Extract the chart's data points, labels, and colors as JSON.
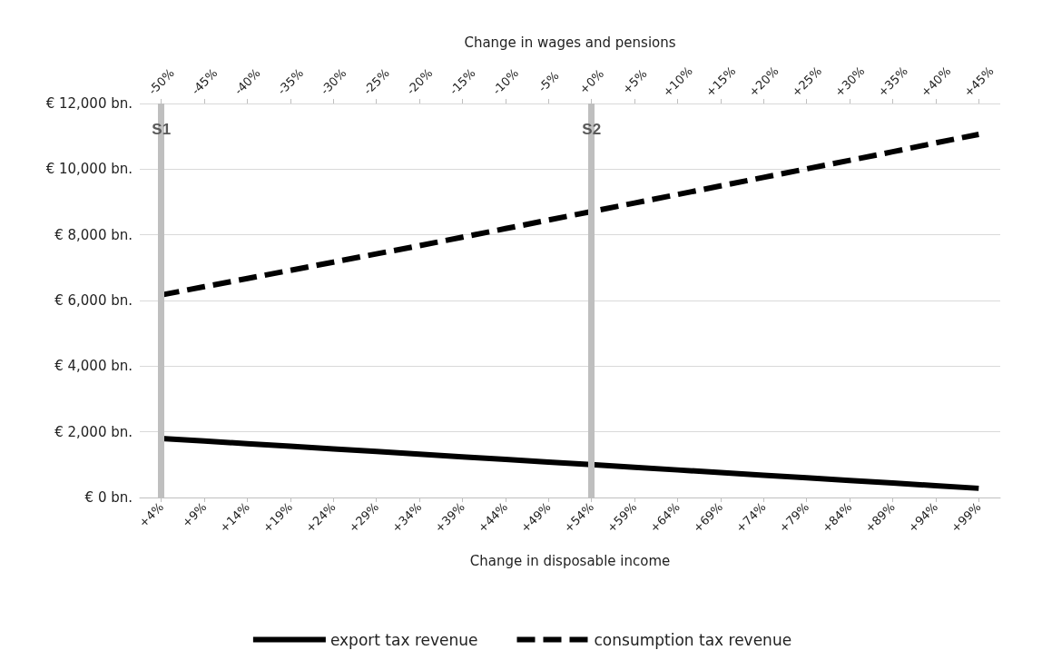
{
  "chart_data": {
    "type": "line",
    "xlabel": "Change in disposable income",
    "x2label": "Change in wages and pensions",
    "x": [
      4,
      9,
      14,
      19,
      24,
      29,
      34,
      39,
      44,
      49,
      54,
      59,
      64,
      69,
      74,
      79,
      84,
      89,
      94,
      99
    ],
    "xlim": [
      1.5,
      101.5
    ],
    "xticks": [
      {
        "value": 4,
        "label": "+4%"
      },
      {
        "value": 9,
        "label": "+9%"
      },
      {
        "value": 14,
        "label": "+14%"
      },
      {
        "value": 19,
        "label": "+19%"
      },
      {
        "value": 24,
        "label": "+24%"
      },
      {
        "value": 29,
        "label": "+29%"
      },
      {
        "value": 34,
        "label": "+34%"
      },
      {
        "value": 39,
        "label": "+39%"
      },
      {
        "value": 44,
        "label": "+44%"
      },
      {
        "value": 49,
        "label": "+49%"
      },
      {
        "value": 54,
        "label": "+54%"
      },
      {
        "value": 59,
        "label": "+59%"
      },
      {
        "value": 64,
        "label": "+64%"
      },
      {
        "value": 69,
        "label": "+69%"
      },
      {
        "value": 74,
        "label": "+74%"
      },
      {
        "value": 79,
        "label": "+79%"
      },
      {
        "value": 84,
        "label": "+84%"
      },
      {
        "value": 89,
        "label": "+89%"
      },
      {
        "value": 94,
        "label": "+94%"
      },
      {
        "value": 99,
        "label": "+99%"
      }
    ],
    "x2lim": [
      -52.5,
      47.5
    ],
    "x2ticks": [
      {
        "value": -50,
        "label": "-50%"
      },
      {
        "value": -45,
        "label": "-45%"
      },
      {
        "value": -40,
        "label": "-40%"
      },
      {
        "value": -35,
        "label": "-35%"
      },
      {
        "value": -30,
        "label": "-30%"
      },
      {
        "value": -25,
        "label": "-25%"
      },
      {
        "value": -20,
        "label": "-20%"
      },
      {
        "value": -15,
        "label": "-15%"
      },
      {
        "value": -10,
        "label": "-10%"
      },
      {
        "value": -5,
        "label": "-5%"
      },
      {
        "value": 0,
        "label": "+0%"
      },
      {
        "value": 5,
        "label": "+5%"
      },
      {
        "value": 10,
        "label": "+10%"
      },
      {
        "value": 15,
        "label": "+15%"
      },
      {
        "value": 20,
        "label": "+20%"
      },
      {
        "value": 25,
        "label": "+25%"
      },
      {
        "value": 30,
        "label": "+30%"
      },
      {
        "value": 35,
        "label": "+35%"
      },
      {
        "value": 40,
        "label": "+40%"
      },
      {
        "value": 45,
        "label": "+45%"
      }
    ],
    "ylim": [
      0,
      12000
    ],
    "yticks": [
      {
        "value": 0,
        "label": "€ 0 bn."
      },
      {
        "value": 2000,
        "label": "€ 2,000 bn."
      },
      {
        "value": 4000,
        "label": "€ 4,000 bn."
      },
      {
        "value": 6000,
        "label": "€ 6,000 bn."
      },
      {
        "value": 8000,
        "label": "€ 8,000 bn."
      },
      {
        "value": 10000,
        "label": "€ 10,000 bn."
      },
      {
        "value": 12000,
        "label": "€ 12,000 bn."
      }
    ],
    "series": [
      {
        "name": "export tax revenue",
        "color": "#000000",
        "line_style": "solid",
        "values": [
          1800,
          1720,
          1640,
          1560,
          1480,
          1400,
          1320,
          1240,
          1160,
          1080,
          1000,
          920,
          840,
          760,
          680,
          600,
          520,
          440,
          360,
          280
        ]
      },
      {
        "name": "consumption tax revenue",
        "color": "#000000",
        "line_style": "dashed",
        "values": [
          6170,
          6420,
          6670,
          6920,
          7170,
          7420,
          7670,
          7930,
          8190,
          8450,
          8710,
          8970,
          9230,
          9490,
          9750,
          10010,
          10270,
          10530,
          10800,
          11060
        ]
      }
    ],
    "ref_lines": [
      {
        "axis": "x",
        "value": 4,
        "label": "S1",
        "color": "#bfbfbf"
      },
      {
        "axis": "x",
        "value": 54,
        "label": "S2",
        "color": "#bfbfbf"
      }
    ],
    "grid": "y",
    "legend": "bottom",
    "marker": "none"
  }
}
